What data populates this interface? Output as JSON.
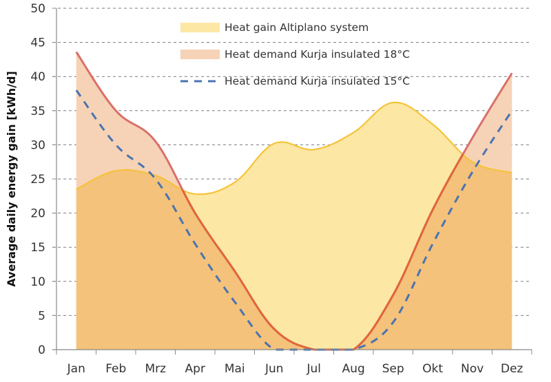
{
  "chart_data": {
    "type": "area",
    "title": "",
    "xlabel": "",
    "ylabel": "Average daily energy gain [kWh/d]",
    "ylim": [
      0,
      50
    ],
    "yticks": [
      0,
      5,
      10,
      15,
      20,
      25,
      30,
      35,
      40,
      45,
      50
    ],
    "ytick_labels": [
      "0",
      "5",
      "10",
      "15",
      "20",
      "25",
      "30",
      "35",
      "40",
      "45",
      "50"
    ],
    "grid": "horizontal-dashed",
    "legend_position": "top-center",
    "categories": [
      "Jan",
      "Feb",
      "Mrz",
      "Apr",
      "Mai",
      "Jun",
      "Jul",
      "Aug",
      "Sep",
      "Okt",
      "Nov",
      "Dez"
    ],
    "series": [
      {
        "name": "Heat gain Altiplano system",
        "style": "filled-area",
        "fill_color": "#fce7a4",
        "line_color": "#f5c33b",
        "values": [
          23.5,
          26.2,
          25.5,
          22.8,
          24.5,
          30.2,
          29.3,
          31.8,
          36.2,
          33.0,
          27.5,
          25.9
        ]
      },
      {
        "name": "Heat demand Kurja insulated 18°C",
        "style": "filled-area",
        "fill_color": "#f6d2b6",
        "line_color": "#d9706a",
        "values": [
          43.6,
          35.0,
          30.5,
          20.0,
          11.5,
          3.0,
          0.0,
          0.0,
          8.0,
          20.5,
          31.0,
          40.5
        ]
      },
      {
        "name": "Heat demand Kurja insulated 15°C",
        "style": "dashed-line",
        "line_color": "#4a73b0",
        "values": [
          38.0,
          30.0,
          25.0,
          15.5,
          7.0,
          0.0,
          0.0,
          0.0,
          4.0,
          15.5,
          26.0,
          35.0
        ]
      }
    ],
    "overlap_fill_color": "#f4c27a",
    "overlap_line_color": "#e0663a"
  }
}
